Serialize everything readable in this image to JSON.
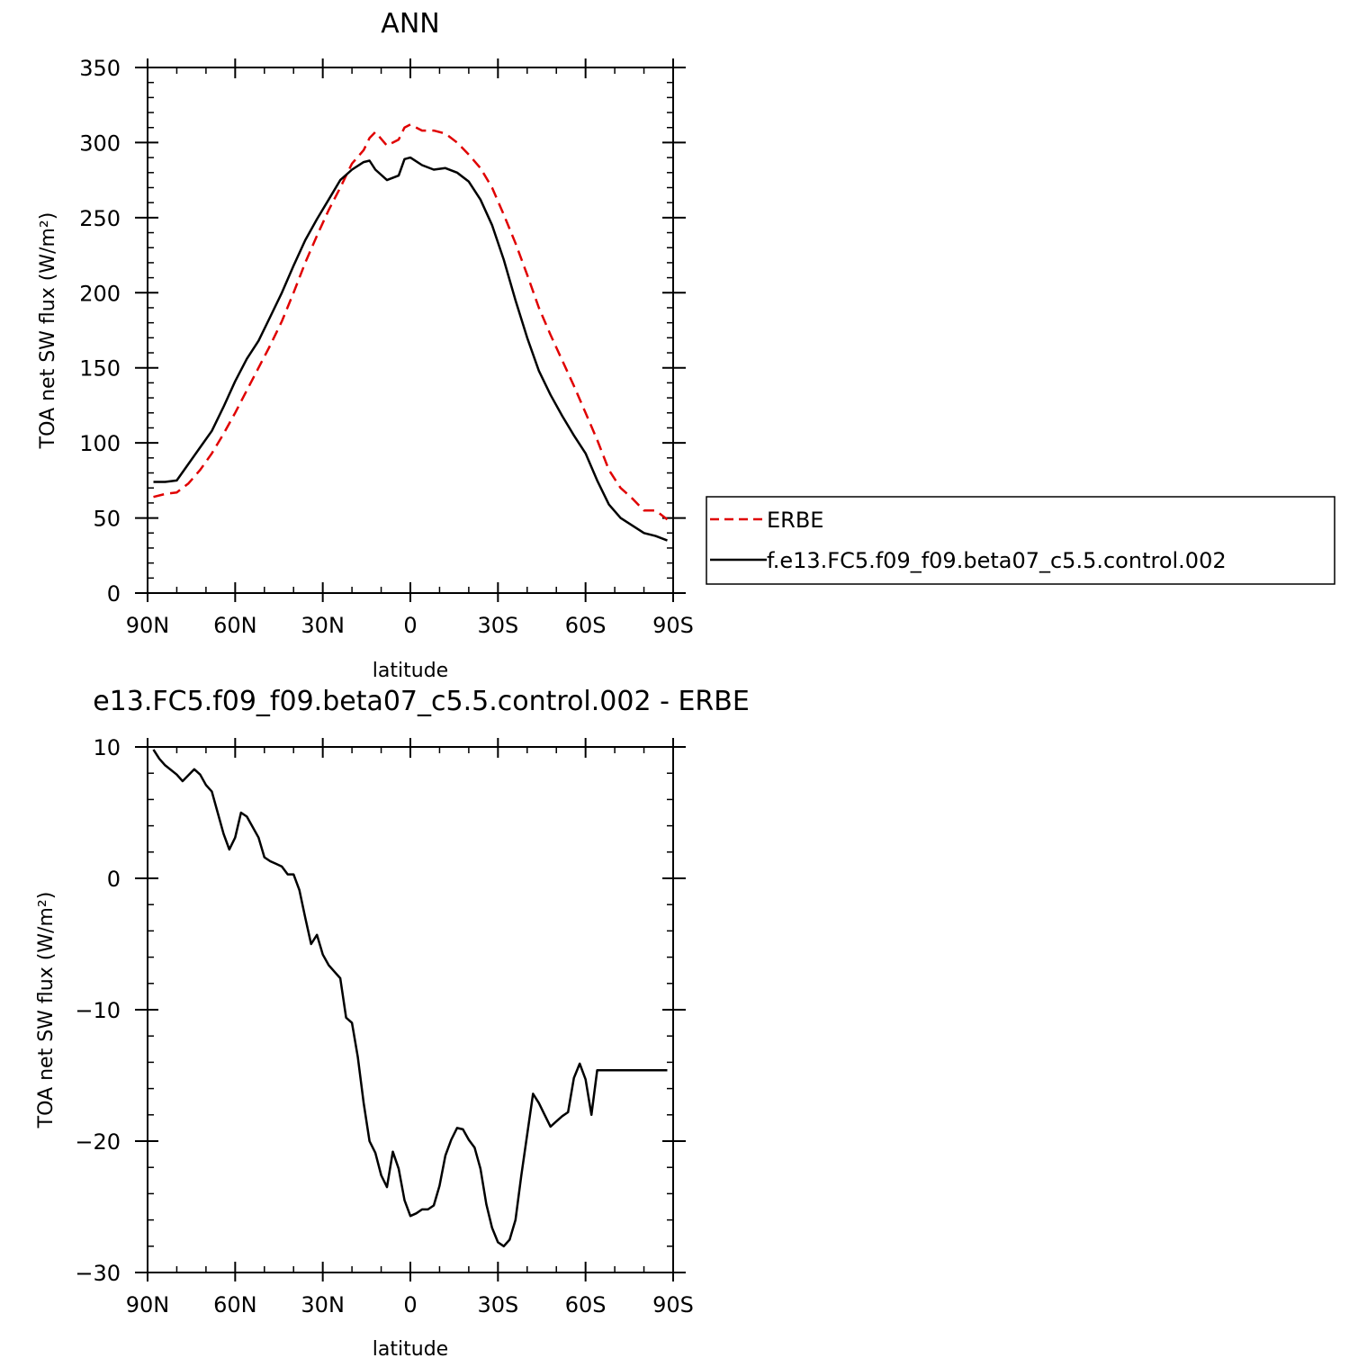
{
  "chart_data": [
    {
      "type": "line",
      "title": "ANN",
      "xlabel": "latitude",
      "ylabel": "TOA net SW flux (W/m²)",
      "xlim": [
        90,
        -90
      ],
      "ylim": [
        0,
        350
      ],
      "xticks": [
        90,
        60,
        30,
        0,
        -30,
        -60,
        -90
      ],
      "xtick_labels": [
        "90N",
        "60N",
        "30N",
        "0",
        "30S",
        "60S",
        "90S"
      ],
      "yticks": [
        0,
        50,
        100,
        150,
        200,
        250,
        300,
        350
      ],
      "ytick_labels": [
        "0",
        "50",
        "100",
        "150",
        "200",
        "250",
        "300",
        "350"
      ],
      "grid": false,
      "legend": "right, outside plot",
      "series": [
        {
          "name": "ERBE",
          "color": "#e00000",
          "dash": "dashed",
          "x": [
            88,
            84,
            80,
            76,
            72,
            68,
            64,
            60,
            56,
            52,
            48,
            44,
            40,
            36,
            32,
            28,
            24,
            20,
            16,
            14,
            12,
            8,
            4,
            2,
            0,
            -4,
            -8,
            -12,
            -16,
            -20,
            -24,
            -28,
            -32,
            -36,
            -40,
            -44,
            -48,
            -52,
            -56,
            -60,
            -64,
            -68,
            -72,
            -76,
            -80,
            -84,
            -88
          ],
          "values": [
            64,
            66,
            67,
            73,
            82,
            93,
            106,
            120,
            135,
            150,
            165,
            181,
            200,
            220,
            238,
            255,
            270,
            286,
            295,
            303,
            307,
            298,
            302,
            310,
            312,
            308,
            308,
            306,
            300,
            292,
            283,
            270,
            252,
            233,
            212,
            190,
            172,
            155,
            138,
            120,
            102,
            82,
            70,
            63,
            55,
            55,
            49
          ]
        },
        {
          "name": "f.e13.FC5.f09_f09.beta07_c5.5.control.002",
          "color": "#000000",
          "dash": "solid",
          "x": [
            88,
            84,
            80,
            76,
            72,
            68,
            64,
            60,
            56,
            52,
            48,
            44,
            40,
            36,
            32,
            28,
            24,
            20,
            16,
            14,
            12,
            8,
            4,
            2,
            0,
            -4,
            -8,
            -12,
            -16,
            -20,
            -24,
            -28,
            -32,
            -36,
            -40,
            -44,
            -48,
            -52,
            -56,
            -60,
            -64,
            -68,
            -72,
            -76,
            -80,
            -84,
            -88
          ],
          "values": [
            74,
            74,
            75,
            86,
            97,
            108,
            124,
            141,
            156,
            168,
            184,
            200,
            218,
            235,
            249,
            262,
            275,
            282,
            287,
            288,
            282,
            275,
            278,
            289,
            290,
            285,
            282,
            283,
            280,
            274,
            262,
            245,
            222,
            195,
            170,
            148,
            132,
            118,
            105,
            93,
            75,
            59,
            50,
            45,
            40,
            38,
            35
          ]
        }
      ]
    },
    {
      "type": "line",
      "title": "e13.FC5.f09_f09.beta07_c5.5.control.002 - ERBE",
      "xlabel": "latitude",
      "ylabel": "TOA net SW flux (W/m²)",
      "xlim": [
        90,
        -90
      ],
      "ylim": [
        -30,
        10
      ],
      "xticks": [
        90,
        60,
        30,
        0,
        -30,
        -60,
        -90
      ],
      "xtick_labels": [
        "90N",
        "60N",
        "30N",
        "0",
        "30S",
        "60S",
        "90S"
      ],
      "yticks": [
        -30,
        -20,
        -10,
        0,
        10
      ],
      "ytick_labels": [
        "−30",
        "−20",
        "−10",
        "0",
        "10"
      ],
      "grid": false,
      "series": [
        {
          "color": "#000000",
          "dash": "solid",
          "x": [
            88,
            86,
            84,
            80,
            78,
            74,
            72,
            70,
            68,
            66,
            64,
            62,
            60,
            58,
            56,
            52,
            50,
            48,
            46,
            44,
            42,
            40,
            38,
            36,
            34,
            32,
            30,
            28,
            26,
            24,
            22,
            20,
            18,
            16,
            14,
            12,
            10,
            8,
            6,
            4,
            2,
            0,
            -2,
            -4,
            -6,
            -8,
            -10,
            -12,
            -14,
            -16,
            -18,
            -20,
            -22,
            -24,
            -26,
            -28,
            -30,
            -32,
            -34,
            -36,
            -38,
            -40,
            -42,
            -44,
            -46,
            -48,
            -50,
            -52,
            -54,
            -56,
            -58,
            -60,
            -62,
            -64,
            -66,
            -68,
            -70,
            -72,
            -74,
            -76,
            -78,
            -80,
            -82,
            -84,
            -86,
            -88
          ],
          "values": [
            9.8,
            9.1,
            8.6,
            7.9,
            7.4,
            8.3,
            7.9,
            7.1,
            6.6,
            5.0,
            3.4,
            2.2,
            3.1,
            5.0,
            4.7,
            3.1,
            1.6,
            1.3,
            1.1,
            0.9,
            0.3,
            0.3,
            -0.9,
            -3.0,
            -5.0,
            -4.3,
            -5.8,
            -6.6,
            -7.1,
            -7.6,
            -10.6,
            -11.0,
            -13.6,
            -17.1,
            -20.0,
            -20.9,
            -22.6,
            -23.5,
            -20.8,
            -22.1,
            -24.5,
            -25.7,
            -25.5,
            -25.2,
            -25.2,
            -24.9,
            -23.4,
            -21.1,
            -19.9,
            -19.0,
            -19.1,
            -19.9,
            -20.5,
            -22.1,
            -24.8,
            -26.6,
            -27.7,
            -28.0,
            -27.5,
            -26.0,
            -22.6,
            -19.5,
            -16.4,
            -17.1,
            -18.0,
            -18.9,
            -18.5,
            -18.1,
            -17.8,
            -15.2,
            -14.1,
            -15.3,
            -18.0,
            -14.6,
            -14.6,
            -14.6,
            -14.6,
            -14.6,
            -14.6,
            -14.6,
            -14.6,
            -14.6,
            -14.6,
            -14.6,
            -14.6,
            -14.6
          ]
        }
      ]
    }
  ]
}
